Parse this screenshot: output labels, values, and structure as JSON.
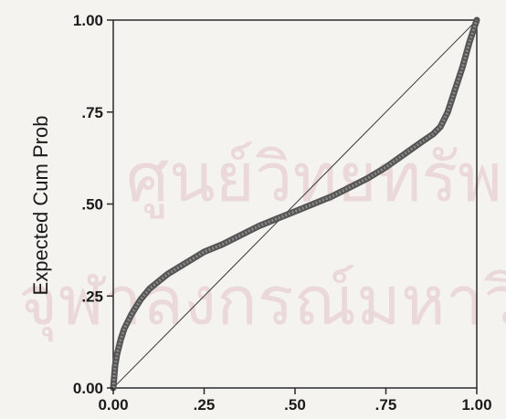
{
  "chart_data": {
    "type": "line",
    "title": "",
    "xlabel": "",
    "ylabel": "Expected Cum Prob",
    "xlim": [
      0,
      1
    ],
    "ylim": [
      0,
      1
    ],
    "x_ticks": [
      0,
      0.25,
      0.5,
      0.75,
      1
    ],
    "x_tick_labels": [
      "0.00",
      ".25",
      ".50",
      ".75",
      "1.00"
    ],
    "y_ticks": [
      0,
      0.25,
      0.5,
      0.75,
      1
    ],
    "y_tick_labels": [
      "0.00",
      ".25",
      ".50",
      ".75",
      "1.00"
    ],
    "grid": false,
    "legend": "none",
    "reference_line": {
      "x": [
        0,
        1
      ],
      "y": [
        0,
        1
      ]
    },
    "series": [
      {
        "x": [
          0.0,
          0.005,
          0.01,
          0.02,
          0.03,
          0.05,
          0.075,
          0.1,
          0.15,
          0.2,
          0.25,
          0.3,
          0.35,
          0.4,
          0.45,
          0.5,
          0.55,
          0.6,
          0.65,
          0.7,
          0.75,
          0.8,
          0.85,
          0.88,
          0.9,
          0.92,
          0.94,
          0.96,
          0.98,
          1.0
        ],
        "y": [
          0.0,
          0.06,
          0.09,
          0.13,
          0.16,
          0.2,
          0.24,
          0.27,
          0.31,
          0.34,
          0.37,
          0.39,
          0.415,
          0.44,
          0.46,
          0.48,
          0.5,
          0.52,
          0.545,
          0.57,
          0.6,
          0.635,
          0.67,
          0.69,
          0.71,
          0.75,
          0.81,
          0.87,
          0.94,
          1.0
        ],
        "color": "#555555"
      }
    ],
    "colors": {
      "frame": "#2a2a2a",
      "reference": "#3a3a3a",
      "watermark": "#d07a86"
    }
  },
  "watermark": {
    "lines": [
      "ศูนย์วิทยทรัพยากร",
      "จุฬาลงกรณ์มหาวิทยาลัย"
    ]
  }
}
